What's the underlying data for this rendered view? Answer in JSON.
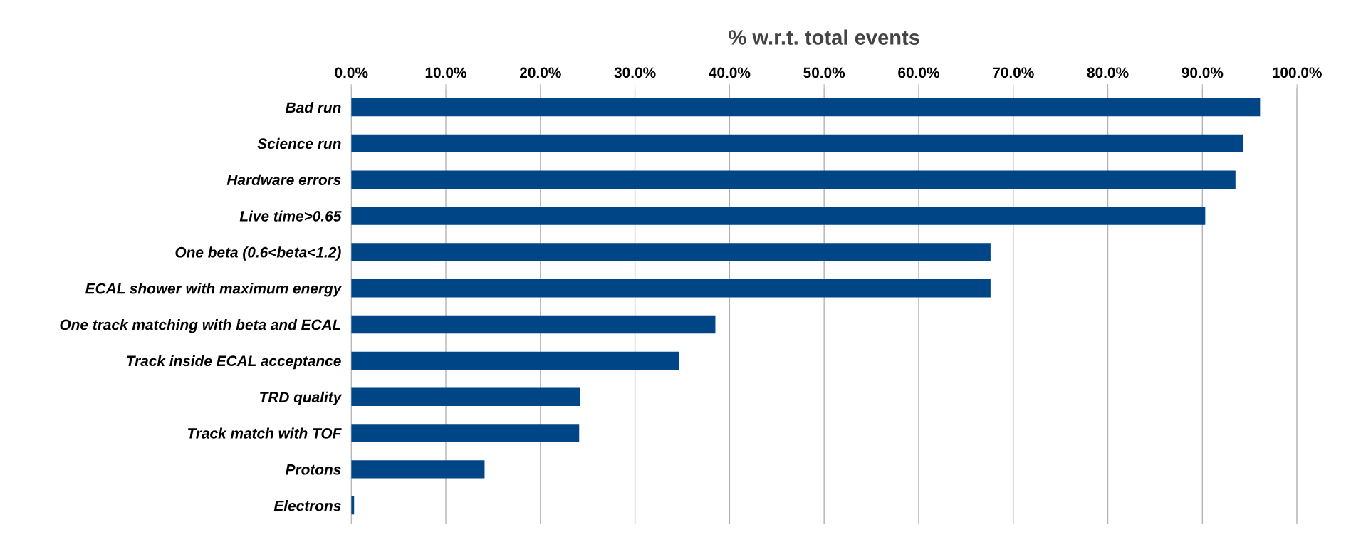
{
  "chart_data": {
    "type": "bar",
    "orientation": "horizontal",
    "title": "% w.r.t. total events",
    "categories": [
      "Bad run",
      "Science run",
      "Hardware errors",
      "Live time>0.65",
      "One beta (0.6<beta<1.2)",
      "ECAL shower with maximum energy",
      "One track matching with beta and ECAL",
      "Track inside ECAL acceptance",
      "TRD quality",
      "Track match with TOF",
      "Protons",
      "Electrons"
    ],
    "values": [
      96.1,
      94.3,
      93.5,
      90.3,
      67.6,
      67.6,
      38.5,
      34.7,
      24.2,
      24.1,
      14.1,
      0.3
    ],
    "color": "#004586",
    "xlim": [
      0,
      100
    ],
    "xticks": [
      {
        "value": 0,
        "label": "0.0%"
      },
      {
        "value": 10,
        "label": "10.0%"
      },
      {
        "value": 20,
        "label": "20.0%"
      },
      {
        "value": 30,
        "label": "30.0%"
      },
      {
        "value": 40,
        "label": "40.0%"
      },
      {
        "value": 50,
        "label": "50.0%"
      },
      {
        "value": 60,
        "label": "60.0%"
      },
      {
        "value": 70,
        "label": "70.0%"
      },
      {
        "value": 80,
        "label": "80.0%"
      },
      {
        "value": 90,
        "label": "90.0%"
      },
      {
        "value": 100,
        "label": "100.0%"
      }
    ],
    "grid": "x"
  }
}
